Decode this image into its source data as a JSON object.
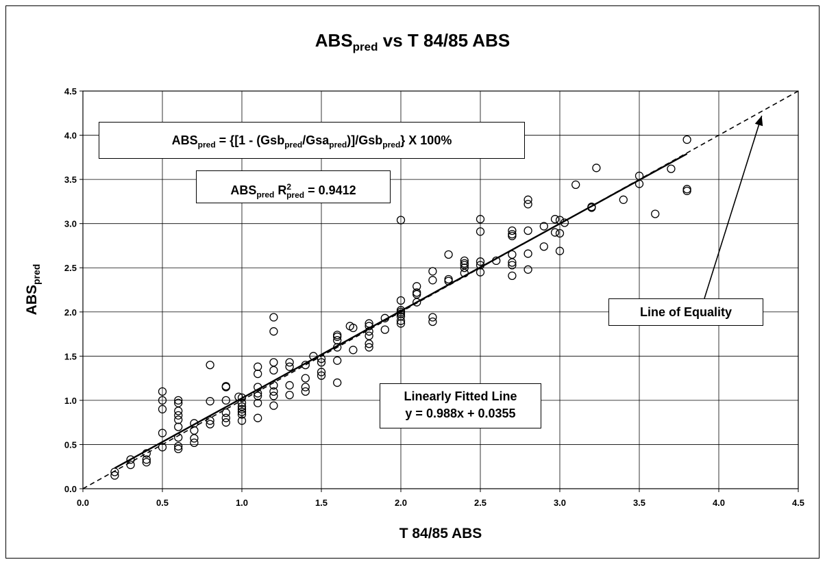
{
  "chart_data": {
    "type": "scatter",
    "title": {
      "main": "ABS",
      "sub": "pred",
      "rest": " vs T 84/85 ABS"
    },
    "xlabel": "T 84/85 ABS",
    "ylabel": {
      "main": "ABS",
      "sub": "pred"
    },
    "xlim": [
      0,
      4.5
    ],
    "ylim": [
      0,
      4.5
    ],
    "xticks": [
      "0.0",
      "0.5",
      "1.0",
      "1.5",
      "2.0",
      "2.5",
      "3.0",
      "3.5",
      "4.0",
      "4.5"
    ],
    "yticks": [
      "0.0",
      "0.5",
      "1.0",
      "1.5",
      "2.0",
      "2.5",
      "3.0",
      "3.5",
      "4.0",
      "4.5"
    ],
    "grid": true,
    "equation_box": {
      "lhs": "ABS",
      "lhs_sub": "pred",
      "eq": " = {[1 - (Gsb",
      "s1": "pred",
      "mid": "/Gsa",
      "s2": "pred",
      "mid2": ")]/Gsb",
      "s3": "pred",
      "end": "} X 100%"
    },
    "r2_box": {
      "a": "ABS",
      "a_sub": "pred",
      "r": " R",
      "r_sup": "2",
      "r_sub": "pred",
      "val": " = 0.9412"
    },
    "fit_box": {
      "line1": "Linearly Fitted Line",
      "line2": "y = 0.988x + 0.0355"
    },
    "equality_box": {
      "label": "Line of Equality"
    },
    "fit_line": {
      "slope": 0.988,
      "intercept": 0.0355,
      "x_range": [
        0.2,
        3.8
      ]
    },
    "equality_line": {
      "x_range": [
        0,
        4.5
      ]
    },
    "series": [
      {
        "marker": "open-circle",
        "points": [
          [
            0.2,
            0.15
          ],
          [
            0.2,
            0.19
          ],
          [
            0.3,
            0.27
          ],
          [
            0.3,
            0.33
          ],
          [
            0.4,
            0.3
          ],
          [
            0.4,
            0.33
          ],
          [
            0.4,
            0.4
          ],
          [
            0.5,
            0.47
          ],
          [
            0.5,
            0.63
          ],
          [
            0.5,
            0.9
          ],
          [
            0.5,
            1.0
          ],
          [
            0.5,
            1.1
          ],
          [
            0.6,
            0.45
          ],
          [
            0.6,
            0.48
          ],
          [
            0.6,
            0.58
          ],
          [
            0.6,
            0.7
          ],
          [
            0.6,
            0.78
          ],
          [
            0.6,
            0.83
          ],
          [
            0.6,
            0.88
          ],
          [
            0.6,
            0.97
          ],
          [
            0.6,
            1.0
          ],
          [
            0.7,
            0.52
          ],
          [
            0.7,
            0.57
          ],
          [
            0.7,
            0.66
          ],
          [
            0.7,
            0.74
          ],
          [
            0.8,
            0.73
          ],
          [
            0.8,
            0.77
          ],
          [
            0.8,
            0.99
          ],
          [
            0.8,
            1.4
          ],
          [
            0.9,
            0.75
          ],
          [
            0.9,
            0.8
          ],
          [
            0.9,
            0.86
          ],
          [
            0.9,
            1.0
          ],
          [
            0.9,
            1.15
          ],
          [
            0.9,
            1.16
          ],
          [
            1.0,
            0.77
          ],
          [
            1.0,
            0.84
          ],
          [
            1.0,
            0.87
          ],
          [
            1.0,
            0.9
          ],
          [
            1.0,
            0.93
          ],
          [
            1.0,
            0.97
          ],
          [
            1.0,
            1.03
          ],
          [
            0.98,
            1.04
          ],
          [
            1.1,
            0.8
          ],
          [
            1.1,
            0.97
          ],
          [
            1.1,
            1.05
          ],
          [
            1.1,
            1.08
          ],
          [
            1.1,
            1.15
          ],
          [
            1.1,
            1.3
          ],
          [
            1.1,
            1.38
          ],
          [
            1.2,
            0.94
          ],
          [
            1.2,
            1.05
          ],
          [
            1.2,
            1.1
          ],
          [
            1.2,
            1.17
          ],
          [
            1.2,
            1.34
          ],
          [
            1.2,
            1.43
          ],
          [
            1.2,
            1.78
          ],
          [
            1.2,
            1.94
          ],
          [
            1.3,
            1.06
          ],
          [
            1.3,
            1.17
          ],
          [
            1.3,
            1.38
          ],
          [
            1.3,
            1.43
          ],
          [
            1.4,
            1.1
          ],
          [
            1.4,
            1.15
          ],
          [
            1.4,
            1.25
          ],
          [
            1.4,
            1.4
          ],
          [
            1.45,
            1.5
          ],
          [
            1.5,
            1.28
          ],
          [
            1.5,
            1.32
          ],
          [
            1.5,
            1.43
          ],
          [
            1.5,
            1.47
          ],
          [
            1.6,
            1.2
          ],
          [
            1.6,
            1.45
          ],
          [
            1.6,
            1.6
          ],
          [
            1.6,
            1.68
          ],
          [
            1.6,
            1.72
          ],
          [
            1.6,
            1.74
          ],
          [
            1.68,
            1.84
          ],
          [
            1.7,
            1.57
          ],
          [
            1.7,
            1.82
          ],
          [
            1.8,
            1.6
          ],
          [
            1.8,
            1.64
          ],
          [
            1.8,
            1.73
          ],
          [
            1.8,
            1.78
          ],
          [
            1.8,
            1.84
          ],
          [
            1.8,
            1.87
          ],
          [
            1.9,
            1.8
          ],
          [
            1.9,
            1.93
          ],
          [
            2.0,
            1.87
          ],
          [
            2.0,
            1.9
          ],
          [
            2.0,
            1.95
          ],
          [
            2.0,
            1.98
          ],
          [
            2.0,
            2.0
          ],
          [
            2.0,
            2.02
          ],
          [
            2.0,
            2.13
          ],
          [
            2.0,
            3.04
          ],
          [
            2.1,
            2.11
          ],
          [
            2.1,
            2.2
          ],
          [
            2.1,
            2.22
          ],
          [
            2.1,
            2.29
          ],
          [
            2.2,
            1.89
          ],
          [
            2.2,
            1.94
          ],
          [
            2.2,
            2.36
          ],
          [
            2.2,
            2.46
          ],
          [
            2.3,
            2.35
          ],
          [
            2.3,
            2.37
          ],
          [
            2.3,
            2.65
          ],
          [
            2.4,
            2.44
          ],
          [
            2.4,
            2.5
          ],
          [
            2.4,
            2.53
          ],
          [
            2.4,
            2.55
          ],
          [
            2.4,
            2.58
          ],
          [
            2.5,
            2.45
          ],
          [
            2.5,
            2.53
          ],
          [
            2.5,
            2.57
          ],
          [
            2.5,
            2.91
          ],
          [
            2.5,
            3.05
          ],
          [
            2.6,
            2.58
          ],
          [
            2.7,
            2.41
          ],
          [
            2.7,
            2.53
          ],
          [
            2.7,
            2.56
          ],
          [
            2.7,
            2.65
          ],
          [
            2.7,
            2.86
          ],
          [
            2.7,
            2.88
          ],
          [
            2.7,
            2.92
          ],
          [
            2.8,
            2.48
          ],
          [
            2.8,
            2.66
          ],
          [
            2.8,
            2.92
          ],
          [
            2.8,
            3.22
          ],
          [
            2.8,
            3.27
          ],
          [
            2.9,
            2.74
          ],
          [
            2.9,
            2.97
          ],
          [
            2.97,
            3.05
          ],
          [
            2.97,
            2.9
          ],
          [
            3.0,
            3.04
          ],
          [
            3.0,
            2.89
          ],
          [
            3.0,
            2.69
          ],
          [
            3.03,
            3.01
          ],
          [
            3.1,
            3.44
          ],
          [
            3.2,
            3.18
          ],
          [
            3.2,
            3.19
          ],
          [
            3.23,
            3.63
          ],
          [
            3.4,
            3.27
          ],
          [
            3.5,
            3.45
          ],
          [
            3.5,
            3.54
          ],
          [
            3.6,
            3.11
          ],
          [
            3.7,
            3.62
          ],
          [
            3.8,
            3.37
          ],
          [
            3.8,
            3.39
          ],
          [
            3.8,
            3.95
          ]
        ]
      }
    ]
  }
}
